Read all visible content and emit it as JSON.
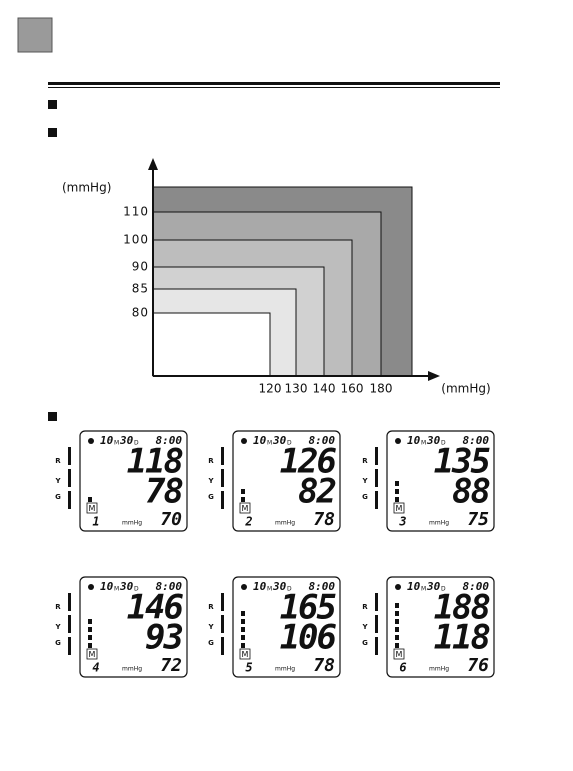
{
  "chart": {
    "y_unit": "(mmHg)",
    "y_labels": [
      "110",
      "100",
      "90",
      "85",
      "80"
    ],
    "x_labels": [
      "120",
      "130",
      "140",
      "160",
      "180"
    ],
    "x_unit": "(mmHg)"
  },
  "displays": [
    {
      "month": "10",
      "month_mark": "M",
      "day": "30",
      "day_mark": "D",
      "time": "8:00",
      "rows": [
        "R",
        "Y",
        "G"
      ],
      "memory": "M",
      "memory_number": "1",
      "unit": "mmHg",
      "systolic": "118",
      "diastolic": "78",
      "pulse": "70",
      "level": 1
    },
    {
      "month": "10",
      "month_mark": "M",
      "day": "30",
      "day_mark": "D",
      "time": "8:00",
      "rows": [
        "R",
        "Y",
        "G"
      ],
      "memory": "M",
      "memory_number": "2",
      "unit": "mmHg",
      "systolic": "126",
      "diastolic": "82",
      "pulse": "78",
      "level": 2
    },
    {
      "month": "10",
      "month_mark": "M",
      "day": "30",
      "day_mark": "D",
      "time": "8:00",
      "rows": [
        "R",
        "Y",
        "G"
      ],
      "memory": "M",
      "memory_number": "3",
      "unit": "mmHg",
      "systolic": "135",
      "diastolic": "88",
      "pulse": "75",
      "level": 3
    },
    {
      "month": "10",
      "month_mark": "M",
      "day": "30",
      "day_mark": "D",
      "time": "8:00",
      "rows": [
        "R",
        "Y",
        "G"
      ],
      "memory": "M",
      "memory_number": "4",
      "unit": "mmHg",
      "systolic": "146",
      "diastolic": "93",
      "pulse": "72",
      "level": 4
    },
    {
      "month": "10",
      "month_mark": "M",
      "day": "30",
      "day_mark": "D",
      "time": "8:00",
      "rows": [
        "R",
        "Y",
        "G"
      ],
      "memory": "M",
      "memory_number": "5",
      "unit": "mmHg",
      "systolic": "165",
      "diastolic": "106",
      "pulse": "78",
      "level": 5
    },
    {
      "month": "10",
      "month_mark": "M",
      "day": "30",
      "day_mark": "D",
      "time": "8:00",
      "rows": [
        "R",
        "Y",
        "G"
      ],
      "memory": "M",
      "memory_number": "6",
      "unit": "mmHg",
      "systolic": "188",
      "diastolic": "118",
      "pulse": "76",
      "level": 6
    }
  ]
}
